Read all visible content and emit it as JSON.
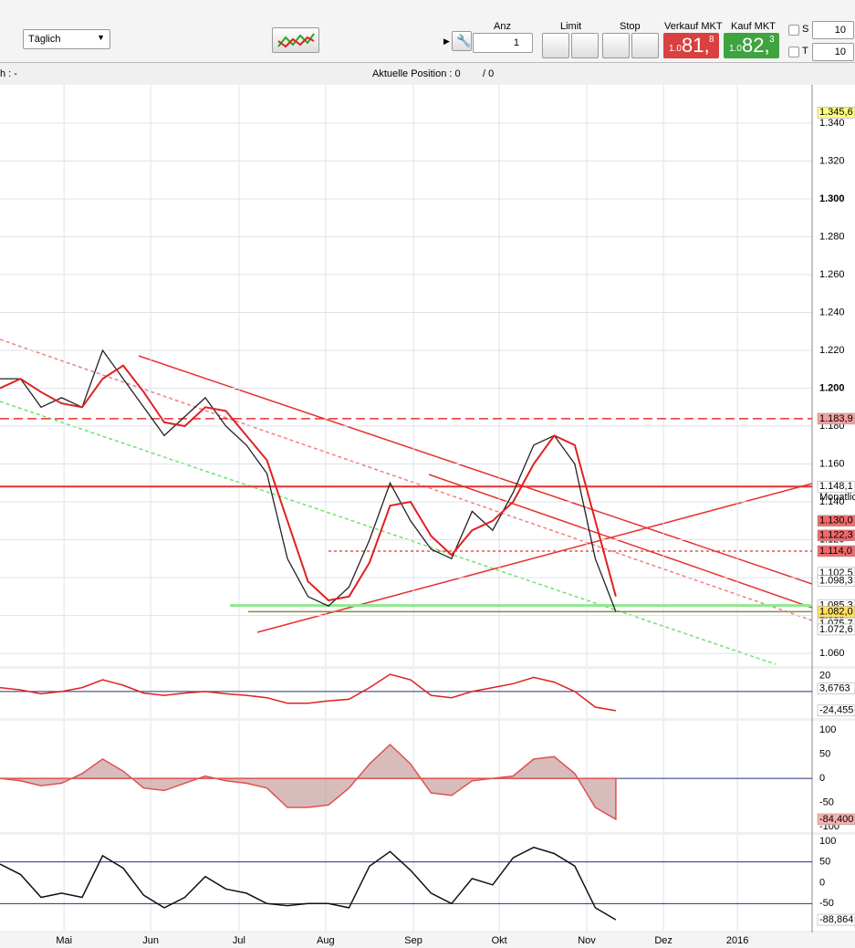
{
  "toolbar": {
    "period": "Täglich",
    "anz_label": "Anz",
    "anz_value": "1",
    "limit_label": "Limit",
    "stop_label": "Stop",
    "sell_label": "Verkauf MKT",
    "sell_price": {
      "prefix": "1.0",
      "big": "81,",
      "suffix": "8"
    },
    "buy_label": "Kauf MKT",
    "buy_price": {
      "prefix": "1.0",
      "big": "82,",
      "suffix": "3"
    },
    "s_label": "S",
    "s_value": "10",
    "t_label": "T",
    "t_value": "10"
  },
  "status": {
    "left": "h : -",
    "position": "Aktuelle Position : 0",
    "position_b": "/ 0"
  },
  "main": {
    "type": "line",
    "x": [
      0,
      5,
      10,
      15,
      20,
      25,
      30,
      35,
      40,
      45,
      50,
      55,
      60,
      65,
      70,
      75,
      80,
      85,
      90,
      95,
      100,
      105,
      110,
      115,
      120,
      125,
      130,
      135,
      140,
      145,
      150
    ],
    "xlim": [
      0,
      197.8
    ],
    "xticks": [
      {
        "value": 15.6,
        "label": "Mai"
      },
      {
        "value": 36.7,
        "label": "Jun"
      },
      {
        "value": 58.2,
        "label": "Jul"
      },
      {
        "value": 79.3,
        "label": "Aug"
      },
      {
        "value": 100.7,
        "label": "Sep"
      },
      {
        "value": 121.6,
        "label": "Okt"
      },
      {
        "value": 142.9,
        "label": "Nov"
      },
      {
        "value": 161.6,
        "label": "Dez"
      },
      {
        "value": 179.6,
        "label": "2016"
      }
    ],
    "ylim": [
      1.0533,
      1.3602
    ],
    "yticks": [
      {
        "value": 1.06,
        "label": "1.060"
      },
      {
        "value": 1.08,
        "label": "1.080"
      },
      {
        "value": 1.1,
        "label": "1.100"
      },
      {
        "value": 1.12,
        "label": "1.120"
      },
      {
        "value": 1.14,
        "label": "1.140"
      },
      {
        "value": 1.16,
        "label": "1.160"
      },
      {
        "value": 1.18,
        "label": "1.180"
      },
      {
        "value": 1.2,
        "label": "1.200"
      },
      {
        "value": 1.22,
        "label": "1.220"
      },
      {
        "value": 1.24,
        "label": "1.240"
      },
      {
        "value": 1.26,
        "label": "1.260"
      },
      {
        "value": 1.28,
        "label": "1.280"
      },
      {
        "value": 1.3,
        "label": "1.300"
      },
      {
        "value": 1.32,
        "label": "1.320"
      },
      {
        "value": 1.34,
        "label": "1.340"
      }
    ],
    "series": [
      {
        "color": "#222222",
        "values": [
          1.205,
          1.205,
          1.19,
          1.195,
          1.19,
          1.22,
          1.205,
          1.19,
          1.175,
          1.185,
          1.195,
          1.18,
          1.17,
          1.155,
          1.11,
          1.09,
          1.085,
          1.095,
          1.12,
          1.15,
          1.13,
          1.115,
          1.11,
          1.135,
          1.125,
          1.145,
          1.17,
          1.175,
          1.16,
          1.11,
          1.082
        ]
      },
      {
        "color": "#e02020",
        "values": [
          1.2,
          1.205,
          1.198,
          1.192,
          1.19,
          1.205,
          1.212,
          1.198,
          1.182,
          1.18,
          1.19,
          1.188,
          1.175,
          1.162,
          1.13,
          1.098,
          1.088,
          1.09,
          1.108,
          1.138,
          1.14,
          1.122,
          1.112,
          1.125,
          1.13,
          1.14,
          1.16,
          1.175,
          1.17,
          1.13,
          1.09
        ]
      }
    ],
    "levels": [
      {
        "value": 1.3456,
        "label": "1.345,6",
        "color": "#ffff80"
      },
      {
        "value": 1.1839,
        "label": "1.183,9",
        "color": "#f4a0a0",
        "line": "dashed"
      },
      {
        "value": 1.1481,
        "label": "1.148,1",
        "note": "Monatlic",
        "color": "#ffffff",
        "line": "solid"
      },
      {
        "value": 1.13,
        "label": "1.130,0",
        "color": "#f06a6a"
      },
      {
        "value": 1.1223,
        "label": "1.122,3",
        "color": "#f06a6a"
      },
      {
        "value": 1.114,
        "label": "1.114,0",
        "color": "#f06a6a",
        "line": "dotted"
      },
      {
        "value": 1.1025,
        "label": "1.102,5",
        "color": "#ffffff"
      },
      {
        "value": 1.0983,
        "label": "1.098,3",
        "color": "#ffffff"
      },
      {
        "value": 1.0853,
        "label": "1.085,3",
        "color": "#ffffff",
        "line": "green"
      },
      {
        "value": 1.082,
        "label": "1.082,0",
        "color": "#ffe060",
        "line": "olive"
      },
      {
        "value": 1.0757,
        "label": "1.075,7",
        "color": "#ffffff"
      },
      {
        "value": 1.0726,
        "label": "1.072,6",
        "color": "#ffffff"
      }
    ]
  },
  "panels": [
    {
      "type": "line",
      "ylim": [
        -34,
        29
      ],
      "yticks": [
        20
      ],
      "hlines": [
        0
      ],
      "color": "#e02020",
      "values": [
        5,
        2,
        -3,
        0,
        5,
        15,
        8,
        -2,
        -5,
        -2,
        0,
        -3,
        -5,
        -8,
        -15,
        -15,
        -12,
        -10,
        5,
        22,
        15,
        -5,
        -8,
        0,
        5,
        10,
        18,
        12,
        0,
        -20,
        -24.5
      ],
      "labels": [
        {
          "value": 3.6763,
          "label": "3,6763",
          "color": "#ffffff"
        },
        {
          "value": -24.455,
          "label": "-24,455",
          "color": "#ffffff"
        }
      ]
    },
    {
      "type": "area",
      "ylim": [
        -111,
        119
      ],
      "yticks": [
        100,
        50,
        0,
        -50,
        -100
      ],
      "hlines": [
        0
      ],
      "color": "#e05050",
      "values": [
        0,
        -5,
        -15,
        -10,
        10,
        40,
        15,
        -20,
        -25,
        -10,
        5,
        -5,
        -10,
        -20,
        -60,
        -60,
        -55,
        -20,
        30,
        70,
        30,
        -30,
        -35,
        -5,
        0,
        5,
        40,
        45,
        10,
        -60,
        -84.4
      ],
      "labels": [
        {
          "value": -84.4,
          "label": "-84,400",
          "color": "#f4b0b0"
        }
      ]
    },
    {
      "type": "line",
      "ylim": [
        -115,
        115
      ],
      "yticks": [
        100,
        50,
        0,
        -50
      ],
      "hlines": [
        50,
        -50
      ],
      "color": "#111111",
      "values": [
        45,
        20,
        -35,
        -25,
        -35,
        65,
        35,
        -30,
        -60,
        -35,
        15,
        -15,
        -25,
        -50,
        -55,
        -50,
        -50,
        -60,
        40,
        75,
        30,
        -25,
        -50,
        10,
        -5,
        60,
        85,
        70,
        40,
        -60,
        -88.9
      ],
      "labels": [
        {
          "value": -88.864,
          "label": "-88,864",
          "color": "#ffffff"
        }
      ]
    }
  ]
}
